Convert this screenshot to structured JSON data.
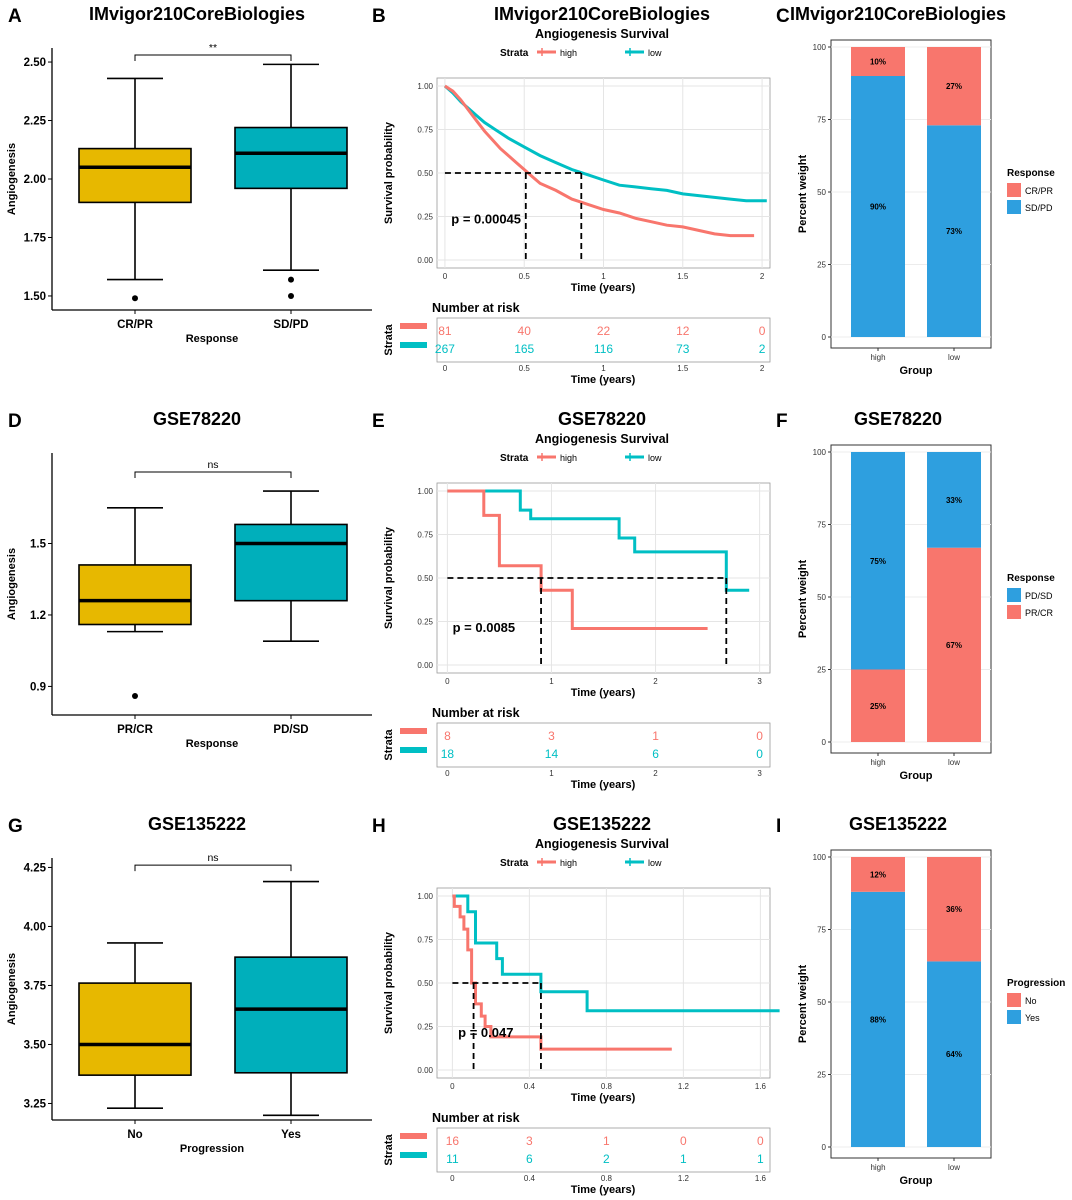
{
  "colors": {
    "high": "#F8766D",
    "low": "#00BFC4",
    "boxA": "#E7B800",
    "boxB": "#00AFBB",
    "blue": "#2E9FDF",
    "red": "#F8766D",
    "grid": "#e5e5e5"
  },
  "rows": [
    {
      "box": {
        "letter": "A",
        "title": "IMvigor210CoreBiologies",
        "ylabel": "Angiogenesis",
        "xlabel": "Response",
        "groups": [
          "CR/PR",
          "SD/PD"
        ],
        "ylim": [
          1.44,
          2.56
        ],
        "yticks": [
          "1.50",
          "1.75",
          "2.00",
          "2.25",
          "2.50"
        ],
        "stats": [
          {
            "min": 1.57,
            "q1": 1.9,
            "med": 2.05,
            "q3": 2.13,
            "max": 2.43,
            "out": [
              1.49
            ]
          },
          {
            "min": 1.61,
            "q1": 1.96,
            "med": 2.11,
            "q3": 2.22,
            "max": 2.49,
            "out": [
              1.57,
              1.5
            ]
          }
        ],
        "sig_y": 2.53,
        "sig": "**"
      },
      "km": {
        "letter": "B",
        "title": "IMvigor210CoreBiologies",
        "subtitle": "Angiogenesis Survival",
        "strata_label": "Strata",
        "legend": [
          "high",
          "low"
        ],
        "ylabel": "Survival probability",
        "xlabel": "Time (years)",
        "xlim": [
          -0.05,
          2.05
        ],
        "xticks": [
          "0",
          "0.5",
          "1",
          "1.5",
          "2"
        ],
        "xtick_vals": [
          0,
          0.5,
          1,
          1.5,
          2
        ],
        "yticks": [
          "0.00",
          "0.25",
          "0.50",
          "0.75",
          "1.00"
        ],
        "pvalue": "p = 0.00045",
        "pval_at": [
          0.04,
          0.21
        ],
        "med_high": 0.51,
        "med_low": 0.86,
        "high": [
          [
            0,
            1
          ],
          [
            0.05,
            0.97
          ],
          [
            0.1,
            0.92
          ],
          [
            0.15,
            0.86
          ],
          [
            0.2,
            0.8
          ],
          [
            0.25,
            0.74
          ],
          [
            0.3,
            0.69
          ],
          [
            0.35,
            0.64
          ],
          [
            0.4,
            0.6
          ],
          [
            0.45,
            0.56
          ],
          [
            0.5,
            0.52
          ],
          [
            0.55,
            0.48
          ],
          [
            0.6,
            0.44
          ],
          [
            0.7,
            0.4
          ],
          [
            0.8,
            0.35
          ],
          [
            0.9,
            0.32
          ],
          [
            1.0,
            0.29
          ],
          [
            1.1,
            0.27
          ],
          [
            1.2,
            0.24
          ],
          [
            1.3,
            0.22
          ],
          [
            1.4,
            0.2
          ],
          [
            1.5,
            0.19
          ],
          [
            1.6,
            0.17
          ],
          [
            1.7,
            0.15
          ],
          [
            1.8,
            0.14
          ],
          [
            1.95,
            0.14
          ]
        ],
        "low": [
          [
            0,
            1
          ],
          [
            0.05,
            0.96
          ],
          [
            0.1,
            0.91
          ],
          [
            0.15,
            0.87
          ],
          [
            0.2,
            0.83
          ],
          [
            0.25,
            0.79
          ],
          [
            0.3,
            0.76
          ],
          [
            0.4,
            0.7
          ],
          [
            0.5,
            0.65
          ],
          [
            0.6,
            0.6
          ],
          [
            0.7,
            0.56
          ],
          [
            0.8,
            0.52
          ],
          [
            0.9,
            0.49
          ],
          [
            1.0,
            0.46
          ],
          [
            1.1,
            0.43
          ],
          [
            1.2,
            0.42
          ],
          [
            1.3,
            0.41
          ],
          [
            1.4,
            0.4
          ],
          [
            1.5,
            0.38
          ],
          [
            1.6,
            0.37
          ],
          [
            1.7,
            0.36
          ],
          [
            1.8,
            0.35
          ],
          [
            1.9,
            0.34
          ],
          [
            2.03,
            0.34
          ]
        ],
        "risk_title": "Number at risk",
        "risk_high": [
          "81",
          "40",
          "22",
          "12",
          "0"
        ],
        "risk_low": [
          "267",
          "165",
          "116",
          "73",
          "2"
        ]
      },
      "bar": {
        "letter": "C",
        "title": "IMvigor210CoreBiologies",
        "ylabel": "Percent weight",
        "xlabel": "Group",
        "groups": [
          "high",
          "low"
        ],
        "legend_title": "Response",
        "legend": [
          "CR/PR",
          "SD/PD"
        ],
        "legend_colors": [
          "red",
          "blue"
        ],
        "top_color": "red",
        "bottom_color": "blue",
        "top": [
          10,
          27
        ],
        "bottom": [
          90,
          73
        ],
        "top_labels": [
          "10%",
          "27%"
        ],
        "bottom_labels": [
          "90%",
          "73%"
        ],
        "yticks": [
          "0",
          "25",
          "50",
          "75",
          "100"
        ]
      }
    },
    {
      "box": {
        "letter": "D",
        "title": "GSE78220",
        "ylabel": "Angiogenesis",
        "xlabel": "Response",
        "groups": [
          "PR/CR",
          "PD/SD"
        ],
        "ylim": [
          0.78,
          1.88
        ],
        "yticks": [
          "0.9",
          "1.2",
          "1.5"
        ],
        "stats": [
          {
            "min": 1.13,
            "q1": 1.16,
            "med": 1.26,
            "q3": 1.41,
            "max": 1.65,
            "out": [
              0.86
            ]
          },
          {
            "min": 1.09,
            "q1": 1.26,
            "med": 1.5,
            "q3": 1.58,
            "max": 1.72,
            "out": []
          }
        ],
        "sig_y": 1.8,
        "sig": "ns"
      },
      "km": {
        "letter": "E",
        "title": "GSE78220",
        "subtitle": "Angiogenesis Survival",
        "strata_label": "Strata",
        "legend": [
          "high",
          "low"
        ],
        "ylabel": "Survival probability",
        "xlabel": "Time (years)",
        "xlim": [
          -0.1,
          3.1
        ],
        "xticks": [
          "0",
          "1",
          "2",
          "3"
        ],
        "xtick_vals": [
          0,
          1,
          2,
          3
        ],
        "yticks": [
          "0.00",
          "0.25",
          "0.50",
          "0.75",
          "1.00"
        ],
        "pvalue": "p = 0.0085",
        "pval_at": [
          0.05,
          0.19
        ],
        "med_high": 0.9,
        "med_low": 2.68,
        "high": [
          [
            0,
            1
          ],
          [
            0.35,
            1
          ],
          [
            0.35,
            0.86
          ],
          [
            0.5,
            0.86
          ],
          [
            0.5,
            0.57
          ],
          [
            0.9,
            0.57
          ],
          [
            0.9,
            0.43
          ],
          [
            1.2,
            0.43
          ],
          [
            1.2,
            0.21
          ],
          [
            2.5,
            0.21
          ]
        ],
        "low": [
          [
            0,
            1
          ],
          [
            0.7,
            1
          ],
          [
            0.7,
            0.89
          ],
          [
            0.8,
            0.89
          ],
          [
            0.8,
            0.84
          ],
          [
            1.65,
            0.84
          ],
          [
            1.65,
            0.73
          ],
          [
            1.8,
            0.73
          ],
          [
            1.8,
            0.65
          ],
          [
            2.68,
            0.65
          ],
          [
            2.68,
            0.43
          ],
          [
            2.9,
            0.43
          ]
        ],
        "risk_title": "Number at risk",
        "risk_high": [
          "8",
          "3",
          "1",
          "0"
        ],
        "risk_low": [
          "18",
          "14",
          "6",
          "0"
        ]
      },
      "bar": {
        "letter": "F",
        "title": "GSE78220",
        "ylabel": "Percent weight",
        "xlabel": "Group",
        "groups": [
          "high",
          "low"
        ],
        "legend_title": "Response",
        "legend": [
          "PD/SD",
          "PR/CR"
        ],
        "legend_colors": [
          "blue",
          "red"
        ],
        "top_color": "blue",
        "bottom_color": "red",
        "top": [
          75,
          33
        ],
        "bottom": [
          25,
          67
        ],
        "top_labels": [
          "75%",
          "33%"
        ],
        "bottom_labels": [
          "25%",
          "67%"
        ],
        "yticks": [
          "0",
          "25",
          "50",
          "75",
          "100"
        ]
      }
    },
    {
      "box": {
        "letter": "G",
        "title": "GSE135222",
        "ylabel": "Angiogenesis",
        "xlabel": "Progression",
        "groups": [
          "No",
          "Yes"
        ],
        "ylim": [
          3.18,
          4.29
        ],
        "yticks": [
          "3.25",
          "3.50",
          "3.75",
          "4.00",
          "4.25"
        ],
        "stats": [
          {
            "min": 3.23,
            "q1": 3.37,
            "med": 3.5,
            "q3": 3.76,
            "max": 3.93,
            "out": []
          },
          {
            "min": 3.2,
            "q1": 3.38,
            "med": 3.65,
            "q3": 3.87,
            "max": 4.19,
            "out": []
          }
        ],
        "sig_y": 4.26,
        "sig": "ns"
      },
      "km": {
        "letter": "H",
        "title": "GSE135222",
        "subtitle": "Angiogenesis Survival",
        "strata_label": "Strata",
        "legend": [
          "high",
          "low"
        ],
        "ylabel": "Survival probability",
        "xlabel": "Time (years)",
        "xlim": [
          -0.08,
          1.65
        ],
        "xticks": [
          "0",
          "0.4",
          "0.8",
          "1.2",
          "1.6"
        ],
        "xtick_vals": [
          0,
          0.4,
          0.8,
          1.2,
          1.6
        ],
        "yticks": [
          "0.00",
          "0.25",
          "0.50",
          "0.75",
          "1.00"
        ],
        "pvalue": "p = 0.047",
        "pval_at": [
          0.03,
          0.19
        ],
        "med_high": 0.11,
        "med_low": 0.46,
        "high": [
          [
            0,
            1
          ],
          [
            0.01,
            1
          ],
          [
            0.01,
            0.94
          ],
          [
            0.04,
            0.94
          ],
          [
            0.04,
            0.88
          ],
          [
            0.06,
            0.88
          ],
          [
            0.06,
            0.81
          ],
          [
            0.08,
            0.81
          ],
          [
            0.08,
            0.69
          ],
          [
            0.1,
            0.69
          ],
          [
            0.1,
            0.5
          ],
          [
            0.12,
            0.5
          ],
          [
            0.12,
            0.38
          ],
          [
            0.15,
            0.38
          ],
          [
            0.15,
            0.31
          ],
          [
            0.17,
            0.31
          ],
          [
            0.17,
            0.25
          ],
          [
            0.2,
            0.25
          ],
          [
            0.2,
            0.19
          ],
          [
            0.46,
            0.19
          ],
          [
            0.46,
            0.12
          ],
          [
            1.14,
            0.12
          ]
        ],
        "low": [
          [
            0,
            1
          ],
          [
            0.08,
            1
          ],
          [
            0.08,
            0.91
          ],
          [
            0.12,
            0.91
          ],
          [
            0.12,
            0.73
          ],
          [
            0.23,
            0.73
          ],
          [
            0.23,
            0.64
          ],
          [
            0.26,
            0.64
          ],
          [
            0.26,
            0.55
          ],
          [
            0.46,
            0.55
          ],
          [
            0.46,
            0.45
          ],
          [
            0.7,
            0.45
          ],
          [
            0.7,
            0.34
          ],
          [
            1.7,
            0.34
          ]
        ],
        "risk_title": "Number at risk",
        "risk_high": [
          "16",
          "3",
          "1",
          "0",
          "0"
        ],
        "risk_low": [
          "11",
          "6",
          "2",
          "1",
          "1"
        ]
      },
      "bar": {
        "letter": "I",
        "title": "GSE135222",
        "ylabel": "Percent weight",
        "xlabel": "Group",
        "groups": [
          "high",
          "low"
        ],
        "legend_title": "Progression",
        "legend": [
          "No",
          "Yes"
        ],
        "legend_colors": [
          "red",
          "blue"
        ],
        "top_color": "red",
        "bottom_color": "blue",
        "top": [
          12,
          36
        ],
        "bottom": [
          88,
          64
        ],
        "top_labels": [
          "12%",
          "36%"
        ],
        "bottom_labels": [
          "88%",
          "64%"
        ],
        "yticks": [
          "0",
          "25",
          "50",
          "75",
          "100"
        ]
      }
    }
  ],
  "chart_data": [
    {
      "type": "box",
      "title": "IMvigor210CoreBiologies",
      "categories": [
        "CR/PR",
        "SD/PD"
      ],
      "ylabel": "Angiogenesis",
      "xlabel": "Response",
      "medians": [
        2.05,
        2.11
      ],
      "significance": "**"
    },
    {
      "type": "line",
      "title": "IMvigor210CoreBiologies",
      "subtitle": "Angiogenesis Survival",
      "series": [
        {
          "name": "high"
        },
        {
          "name": "low"
        }
      ],
      "pvalue": "p = 0.00045"
    },
    {
      "type": "bar",
      "title": "IMvigor210CoreBiologies",
      "categories": [
        "high",
        "low"
      ],
      "series": [
        {
          "name": "CR/PR",
          "values": [
            10,
            27
          ]
        },
        {
          "name": "SD/PD",
          "values": [
            90,
            73
          ]
        }
      ]
    },
    {
      "type": "box",
      "title": "GSE78220",
      "categories": [
        "PR/CR",
        "PD/SD"
      ],
      "medians": [
        1.26,
        1.5
      ],
      "significance": "ns"
    },
    {
      "type": "line",
      "title": "GSE78220",
      "subtitle": "Angiogenesis Survival",
      "series": [
        {
          "name": "high"
        },
        {
          "name": "low"
        }
      ],
      "pvalue": "p = 0.0085"
    },
    {
      "type": "bar",
      "title": "GSE78220",
      "categories": [
        "high",
        "low"
      ],
      "series": [
        {
          "name": "PD/SD",
          "values": [
            75,
            33
          ]
        },
        {
          "name": "PR/CR",
          "values": [
            25,
            67
          ]
        }
      ]
    },
    {
      "type": "box",
      "title": "GSE135222",
      "categories": [
        "No",
        "Yes"
      ],
      "xlabel": "Progression",
      "medians": [
        3.5,
        3.65
      ],
      "significance": "ns"
    },
    {
      "type": "line",
      "title": "GSE135222",
      "subtitle": "Angiogenesis Survival",
      "series": [
        {
          "name": "high"
        },
        {
          "name": "low"
        }
      ],
      "pvalue": "p = 0.047"
    },
    {
      "type": "bar",
      "title": "GSE135222",
      "categories": [
        "high",
        "low"
      ],
      "series": [
        {
          "name": "No",
          "values": [
            12,
            36
          ]
        },
        {
          "name": "Yes",
          "values": [
            88,
            64
          ]
        }
      ]
    }
  ]
}
